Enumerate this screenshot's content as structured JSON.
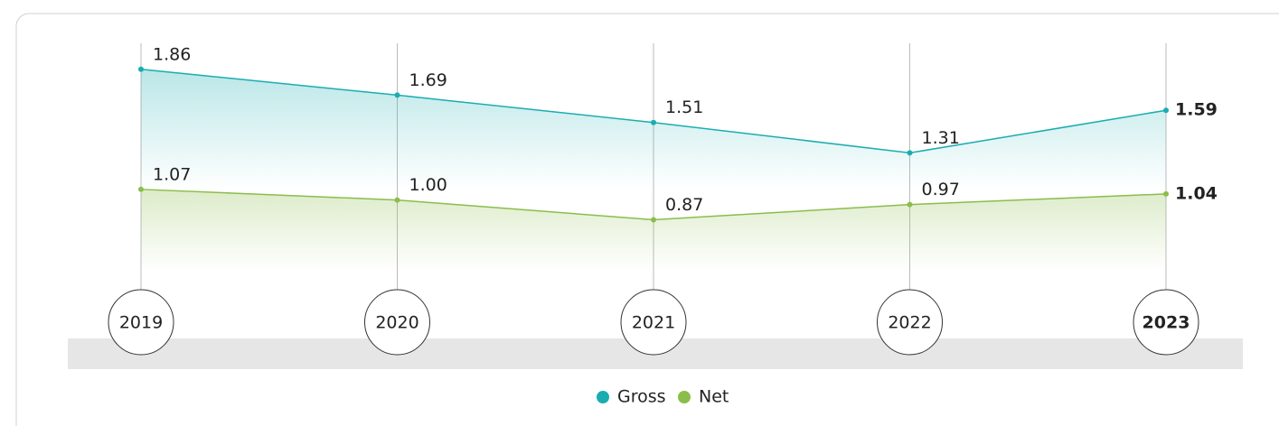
{
  "chart_data": {
    "type": "line",
    "categories": [
      "2019",
      "2020",
      "2021",
      "2022",
      "2023"
    ],
    "series": [
      {
        "name": "Gross",
        "color": "#1aadb0",
        "values": [
          1.86,
          1.69,
          1.51,
          1.31,
          1.59
        ],
        "value_labels": [
          "1.86",
          "1.69",
          "1.51",
          "1.31",
          "1.59"
        ]
      },
      {
        "name": "Net",
        "color": "#8bbd4b",
        "values": [
          1.07,
          1.0,
          0.87,
          0.97,
          1.04
        ],
        "value_labels": [
          "1.07",
          "1.00",
          "0.87",
          "0.97",
          "1.04"
        ]
      }
    ]
  }
}
